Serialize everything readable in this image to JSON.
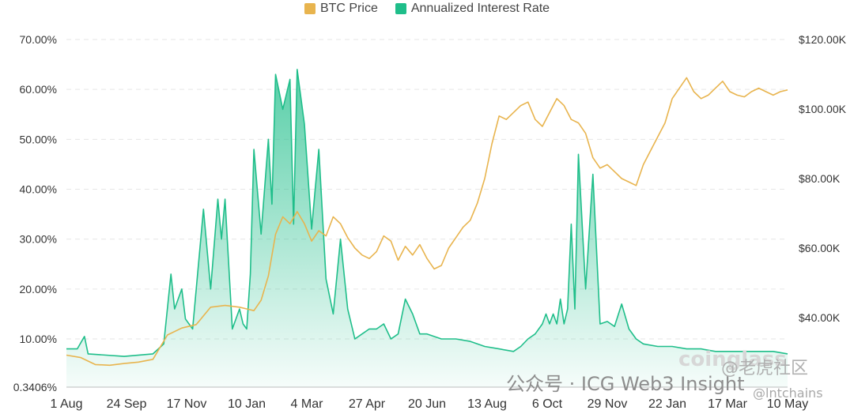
{
  "chart_data": {
    "type": "line",
    "title": "",
    "x_tick_labels": [
      "1 Aug",
      "24 Sep",
      "17 Nov",
      "10 Jan",
      "4 Mar",
      "27 Apr",
      "20 Jun",
      "13 Aug",
      "6 Oct",
      "29 Nov",
      "22 Jan",
      "17 Mar",
      "10 May"
    ],
    "left_axis": {
      "ticks": [
        "70.00%",
        "60.00%",
        "50.00%",
        "40.00%",
        "30.00%",
        "20.00%",
        "10.00%",
        "0.3406%"
      ],
      "range": [
        0.3406,
        70
      ]
    },
    "right_axis": {
      "ticks": [
        "$120.00K",
        "$100.00K",
        "$80.00K",
        "$60.00K",
        "$40.00K"
      ],
      "range": [
        20,
        120
      ]
    },
    "grid": true,
    "legend_position": "top-center",
    "series": [
      {
        "name": "BTC Price",
        "axis": "right",
        "color": "#e8b44e",
        "style": "line",
        "unit": "$K",
        "x": [
          0,
          0.02,
          0.04,
          0.06,
          0.08,
          0.1,
          0.12,
          0.14,
          0.16,
          0.18,
          0.2,
          0.22,
          0.24,
          0.25,
          0.26,
          0.27,
          0.28,
          0.29,
          0.3,
          0.31,
          0.32,
          0.33,
          0.34,
          0.35,
          0.36,
          0.37,
          0.38,
          0.39,
          0.4,
          0.41,
          0.42,
          0.43,
          0.44,
          0.45,
          0.46,
          0.47,
          0.48,
          0.49,
          0.5,
          0.51,
          0.52,
          0.53,
          0.54,
          0.55,
          0.56,
          0.57,
          0.58,
          0.59,
          0.6,
          0.61,
          0.62,
          0.63,
          0.64,
          0.65,
          0.66,
          0.67,
          0.68,
          0.69,
          0.7,
          0.71,
          0.72,
          0.73,
          0.74,
          0.75,
          0.76,
          0.77,
          0.78,
          0.79,
          0.8,
          0.81,
          0.82,
          0.83,
          0.84,
          0.85,
          0.86,
          0.87,
          0.88,
          0.89,
          0.9,
          0.91,
          0.92,
          0.93,
          0.94,
          0.95,
          0.96,
          0.97,
          0.98,
          0.99,
          1
        ],
        "values": [
          29.2,
          28.5,
          26.5,
          26.3,
          26.8,
          27.2,
          28.0,
          35.0,
          37.0,
          38.0,
          43.0,
          43.5,
          43.0,
          42.5,
          42.0,
          45.0,
          52.0,
          64.0,
          69.0,
          67.0,
          70.5,
          67.0,
          62.0,
          65.0,
          63.5,
          69.0,
          67.0,
          63.0,
          60.0,
          58.0,
          57.0,
          59.0,
          63.5,
          62.0,
          56.5,
          60.5,
          58.0,
          61.0,
          57.0,
          54.0,
          55.0,
          60.0,
          63.0,
          66.0,
          68.0,
          73.0,
          80.0,
          90.0,
          98.0,
          97.0,
          99.0,
          101.0,
          102.0,
          97.0,
          95.0,
          99.0,
          103.0,
          101.0,
          97.0,
          96.0,
          93.0,
          86.0,
          83.0,
          84.0,
          82.0,
          80.0,
          79.0,
          78.0,
          84.0,
          88.0,
          92.0,
          96.0,
          103.0,
          106.0,
          109.0,
          105.0,
          103.0,
          104.0,
          106.0,
          108.0,
          105.0,
          104.0,
          103.5,
          105.0,
          106.0,
          105.0,
          104.0,
          105.0,
          105.5
        ]
      },
      {
        "name": "Annualized Interest Rate",
        "axis": "left",
        "color": "#1fbe8a",
        "style": "area",
        "unit": "%",
        "x": [
          0,
          0.015,
          0.025,
          0.03,
          0.08,
          0.12,
          0.135,
          0.145,
          0.15,
          0.16,
          0.165,
          0.175,
          0.19,
          0.2,
          0.21,
          0.215,
          0.22,
          0.23,
          0.24,
          0.245,
          0.25,
          0.255,
          0.26,
          0.27,
          0.28,
          0.285,
          0.29,
          0.3,
          0.31,
          0.315,
          0.32,
          0.33,
          0.34,
          0.345,
          0.35,
          0.36,
          0.37,
          0.38,
          0.39,
          0.4,
          0.41,
          0.42,
          0.43,
          0.44,
          0.45,
          0.46,
          0.47,
          0.48,
          0.49,
          0.5,
          0.52,
          0.54,
          0.56,
          0.58,
          0.6,
          0.62,
          0.63,
          0.64,
          0.65,
          0.66,
          0.665,
          0.67,
          0.675,
          0.68,
          0.685,
          0.69,
          0.695,
          0.7,
          0.705,
          0.71,
          0.72,
          0.73,
          0.74,
          0.75,
          0.76,
          0.77,
          0.78,
          0.79,
          0.8,
          0.82,
          0.84,
          0.86,
          0.88,
          0.9,
          0.92,
          0.94,
          0.96,
          0.98,
          1
        ],
        "values": [
          8.0,
          8.0,
          10.5,
          7.0,
          6.5,
          7.0,
          9.0,
          23.0,
          16.0,
          20.0,
          14.0,
          12.0,
          36.0,
          20.0,
          38.0,
          30.0,
          38.0,
          12.0,
          16.0,
          13.0,
          12.0,
          23.0,
          48.0,
          31.0,
          50.0,
          37.0,
          63.0,
          56.0,
          62.0,
          33.0,
          64.0,
          53.0,
          32.0,
          40.0,
          48.0,
          22.0,
          15.0,
          30.0,
          16.0,
          10.0,
          11.0,
          12.0,
          12.0,
          13.0,
          10.0,
          11.0,
          18.0,
          15.0,
          11.0,
          11.0,
          10.0,
          10.0,
          9.5,
          8.5,
          8.0,
          7.5,
          8.5,
          10.0,
          11.0,
          13.0,
          15.0,
          13.0,
          15.0,
          13.0,
          18.0,
          13.0,
          16.0,
          33.0,
          16.0,
          47.0,
          20.0,
          43.0,
          13.0,
          13.5,
          12.5,
          17.0,
          12.0,
          10.0,
          9.0,
          8.5,
          8.5,
          8.0,
          8.0,
          7.5,
          7.5,
          7.5,
          7.5,
          7.5,
          7.0
        ]
      }
    ]
  },
  "watermark": {
    "wechat_text": "公众号 · ICG Web3 Insight",
    "coinglass_text": "coinglass",
    "community_text": "@老虎社区",
    "handle_text": "@lntchains"
  }
}
